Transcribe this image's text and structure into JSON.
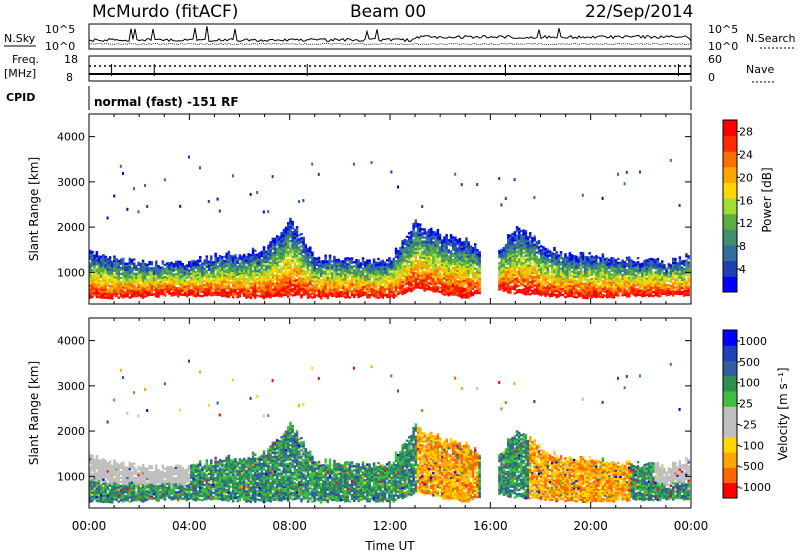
{
  "header": {
    "station": "McMurdo (fitACF)",
    "beam": "Beam 00",
    "date": "22/Sep/2014"
  },
  "noise_panel": {
    "left_label": "N.Sky",
    "right_label": "N.Search",
    "left_ticks": [
      "10^5",
      "10^0"
    ],
    "right_ticks": [
      "10^5",
      "10^0"
    ]
  },
  "freq_panel": {
    "left_label_1": "Freq.",
    "left_label_2": "[MHz]",
    "right_label": "Nave",
    "left_ticks": [
      "18",
      "8"
    ],
    "right_ticks": [
      "60",
      "0"
    ]
  },
  "cpid_panel": {
    "label": "CPID",
    "text": "normal (fast) -151 RF"
  },
  "colors": {
    "power": [
      "#0000ff",
      "#1f3fb4",
      "#2f6fa0",
      "#3f8f6f",
      "#5aaf3f",
      "#9fdf2f",
      "#ffd700",
      "#ffa500",
      "#ff6f00",
      "#ff2a00",
      "#ff0000"
    ],
    "velocity": [
      "#ff0000",
      "#ff6600",
      "#ffa500",
      "#ffd700",
      "#c0c0c0",
      "#bfbfbf",
      "#3fbf3f",
      "#2f8f4f",
      "#2f5f9f",
      "#1f3fbf",
      "#0000ff"
    ]
  },
  "chart_data": [
    {
      "type": "heatmap",
      "title": "",
      "xlabel": "",
      "ylabel": "Slant Range [km]",
      "xlim": [
        "00:00",
        "24:00"
      ],
      "ylim": [
        300,
        4500
      ],
      "yticks": [
        "1000",
        "2000",
        "3000",
        "4000"
      ],
      "colorbar_label": "Power [dB]",
      "colorbar_ticks": [
        "4",
        "8",
        "12",
        "16",
        "20",
        "24",
        "28"
      ],
      "colorbar_range": [
        0,
        30
      ],
      "profile": {
        "hours": [
          0,
          1,
          2,
          3,
          4,
          5,
          6,
          7,
          8,
          9,
          10,
          11,
          12,
          13,
          14,
          15,
          16,
          17,
          18,
          19,
          20,
          21,
          22,
          23,
          24
        ],
        "echo_top_km": [
          1450,
          1300,
          1200,
          1150,
          1200,
          1350,
          1400,
          1500,
          2150,
          1300,
          1300,
          1250,
          1300,
          2100,
          1800,
          1700,
          1300,
          2000,
          1600,
          1350,
          1400,
          1300,
          1250,
          1200,
          1400
        ],
        "echo_bottom_km": [
          400,
          400,
          420,
          450,
          450,
          430,
          420,
          400,
          450,
          400,
          420,
          430,
          400,
          600,
          500,
          400,
          600,
          500,
          450,
          420,
          400,
          420,
          450,
          450,
          450
        ]
      }
    },
    {
      "type": "heatmap",
      "title": "",
      "xlabel": "Time UT",
      "ylabel": "Slant Range [km]",
      "xlim": [
        "00:00",
        "24:00"
      ],
      "ylim": [
        300,
        4500
      ],
      "xticks": [
        "00:00",
        "04:00",
        "08:00",
        "12:00",
        "16:00",
        "20:00",
        "00:00"
      ],
      "yticks": [
        "1000",
        "2000",
        "3000",
        "4000"
      ],
      "colorbar_label": "Velocity [m s⁻¹]",
      "colorbar_ticks": [
        "1000",
        "500",
        "100",
        "25",
        "-25",
        "-100",
        "-500",
        "-1000"
      ]
    }
  ]
}
